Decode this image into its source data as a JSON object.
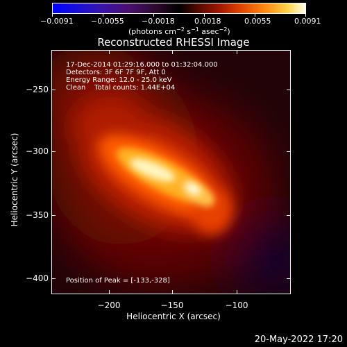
{
  "colorbar": {
    "ticks": [
      "−0.0091",
      "−0.0055",
      "−0.0018",
      "0.0018",
      "0.0055",
      "0.0091"
    ],
    "units_prefix": "(photons cm",
    "units_exp1": "−2",
    "units_mid1": " s",
    "units_exp2": "−1",
    "units_mid2": " asec",
    "units_exp3": "−2",
    "units_suffix": ")"
  },
  "title": "Reconstructed RHESSI Image",
  "info": {
    "time": "17-Dec-2014 01:29:16.000 to 01:32:04.000",
    "detectors": "Detectors: 3F 6F 7F 9F, Att 0",
    "energy": "Energy Range: 12.0 - 25.0 keV",
    "clean": "Clean    Total counts: 1.44E+04",
    "peak": "Position of Peak = [-133,-328]"
  },
  "axes": {
    "ylabel": "Heliocentric Y (arcsec)",
    "xlabel": "Heliocentric X (arcsec)",
    "yticks": [
      "−250",
      "−300",
      "−350",
      "−400"
    ],
    "xticks": [
      "−200",
      "−150",
      "−100"
    ]
  },
  "timestamp": "20-May-2022 17:20",
  "colors": {
    "peak": "#ffffe0",
    "core": "#ffcc33",
    "mid": "#ff5a00",
    "halo": "#a01000",
    "background": "#1a0206"
  }
}
